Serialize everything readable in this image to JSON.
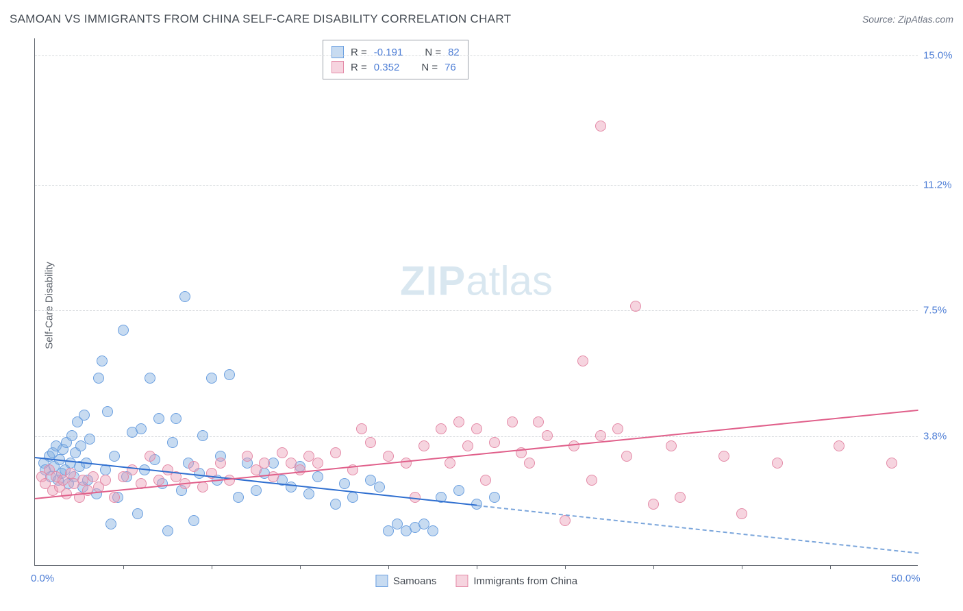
{
  "title": "SAMOAN VS IMMIGRANTS FROM CHINA SELF-CARE DISABILITY CORRELATION CHART",
  "source_label": "Source: ZipAtlas.com",
  "y_axis_label": "Self-Care Disability",
  "watermark_bold": "ZIP",
  "watermark_light": "atlas",
  "chart": {
    "type": "scatter",
    "xlim": [
      0.0,
      50.0
    ],
    "ylim": [
      0.0,
      15.5
    ],
    "y_gridlines": [
      3.8,
      7.5,
      11.2,
      15.0
    ],
    "y_tick_labels": [
      "3.8%",
      "7.5%",
      "11.2%",
      "15.0%"
    ],
    "x_tick_positions": [
      0.0,
      25.0,
      50.0
    ],
    "x_tick_labels": [
      "0.0%",
      "",
      "50.0%"
    ],
    "minor_xticks": [
      5,
      10,
      15,
      20,
      25,
      30,
      35,
      40,
      45
    ],
    "grid_color": "#d7dadd",
    "axis_color": "#60666e",
    "background_color": "#ffffff",
    "tick_label_color": "#4f7fd6",
    "tick_fontsize": 15,
    "marker_radius": 8,
    "marker_stroke_width": 1,
    "trend_line_width": 2
  },
  "series": [
    {
      "name": "Samoans",
      "fill": "rgba(130, 175, 225, 0.45)",
      "stroke": "#6a9fe0",
      "r": -0.191,
      "n": 82,
      "trend": {
        "x1": 0.0,
        "y1": 3.2,
        "x2": 25.0,
        "y2": 1.8,
        "solid_color": "#2f6fd0"
      },
      "trend_dash": {
        "x1": 25.0,
        "y1": 1.8,
        "x2": 50.0,
        "y2": 0.4,
        "dash_color": "#7aa5db"
      },
      "points": [
        [
          0.5,
          3.0
        ],
        [
          0.6,
          2.8
        ],
        [
          0.8,
          3.2
        ],
        [
          0.9,
          2.6
        ],
        [
          1.0,
          3.3
        ],
        [
          1.1,
          2.9
        ],
        [
          1.2,
          3.5
        ],
        [
          1.3,
          2.5
        ],
        [
          1.4,
          3.1
        ],
        [
          1.5,
          2.7
        ],
        [
          1.6,
          3.4
        ],
        [
          1.7,
          2.8
        ],
        [
          1.8,
          3.6
        ],
        [
          1.9,
          2.4
        ],
        [
          2.0,
          3.0
        ],
        [
          2.1,
          3.8
        ],
        [
          2.2,
          2.6
        ],
        [
          2.3,
          3.3
        ],
        [
          2.4,
          4.2
        ],
        [
          2.5,
          2.9
        ],
        [
          2.6,
          3.5
        ],
        [
          2.7,
          2.3
        ],
        [
          2.8,
          4.4
        ],
        [
          2.9,
          3.0
        ],
        [
          3.0,
          2.5
        ],
        [
          3.1,
          3.7
        ],
        [
          3.5,
          2.1
        ],
        [
          3.6,
          5.5
        ],
        [
          3.8,
          6.0
        ],
        [
          4.0,
          2.8
        ],
        [
          4.1,
          4.5
        ],
        [
          4.3,
          1.2
        ],
        [
          4.5,
          3.2
        ],
        [
          4.7,
          2.0
        ],
        [
          5.0,
          6.9
        ],
        [
          5.2,
          2.6
        ],
        [
          5.5,
          3.9
        ],
        [
          5.8,
          1.5
        ],
        [
          6.0,
          4.0
        ],
        [
          6.2,
          2.8
        ],
        [
          6.5,
          5.5
        ],
        [
          6.8,
          3.1
        ],
        [
          7.0,
          4.3
        ],
        [
          7.2,
          2.4
        ],
        [
          7.5,
          1.0
        ],
        [
          7.8,
          3.6
        ],
        [
          8.0,
          4.3
        ],
        [
          8.3,
          2.2
        ],
        [
          8.5,
          7.9
        ],
        [
          8.7,
          3.0
        ],
        [
          9.0,
          1.3
        ],
        [
          9.3,
          2.7
        ],
        [
          9.5,
          3.8
        ],
        [
          10.0,
          5.5
        ],
        [
          10.3,
          2.5
        ],
        [
          10.5,
          3.2
        ],
        [
          11.0,
          5.6
        ],
        [
          11.5,
          2.0
        ],
        [
          12.0,
          3.0
        ],
        [
          12.5,
          2.2
        ],
        [
          13.0,
          2.7
        ],
        [
          13.5,
          3.0
        ],
        [
          14.0,
          2.5
        ],
        [
          14.5,
          2.3
        ],
        [
          15.0,
          2.9
        ],
        [
          15.5,
          2.1
        ],
        [
          16.0,
          2.6
        ],
        [
          17.0,
          1.8
        ],
        [
          17.5,
          2.4
        ],
        [
          18.0,
          2.0
        ],
        [
          19.0,
          2.5
        ],
        [
          19.5,
          2.3
        ],
        [
          20.0,
          1.0
        ],
        [
          20.5,
          1.2
        ],
        [
          21.0,
          1.0
        ],
        [
          21.5,
          1.1
        ],
        [
          22.0,
          1.2
        ],
        [
          22.5,
          1.0
        ],
        [
          23.0,
          2.0
        ],
        [
          24.0,
          2.2
        ],
        [
          25.0,
          1.8
        ],
        [
          26.0,
          2.0
        ]
      ]
    },
    {
      "name": "Immigrants from China",
      "fill": "rgba(235, 160, 185, 0.45)",
      "stroke": "#e48aa7",
      "r": 0.352,
      "n": 76,
      "trend": {
        "x1": 0.0,
        "y1": 2.0,
        "x2": 50.0,
        "y2": 4.6,
        "solid_color": "#e05f8a"
      },
      "points": [
        [
          0.4,
          2.6
        ],
        [
          0.6,
          2.4
        ],
        [
          0.8,
          2.8
        ],
        [
          1.0,
          2.2
        ],
        [
          1.2,
          2.6
        ],
        [
          1.4,
          2.3
        ],
        [
          1.6,
          2.5
        ],
        [
          1.8,
          2.1
        ],
        [
          2.0,
          2.7
        ],
        [
          2.2,
          2.4
        ],
        [
          2.5,
          2.0
        ],
        [
          2.7,
          2.5
        ],
        [
          3.0,
          2.2
        ],
        [
          3.3,
          2.6
        ],
        [
          3.6,
          2.3
        ],
        [
          4.0,
          2.5
        ],
        [
          4.5,
          2.0
        ],
        [
          5.0,
          2.6
        ],
        [
          5.5,
          2.8
        ],
        [
          6.0,
          2.4
        ],
        [
          6.5,
          3.2
        ],
        [
          7.0,
          2.5
        ],
        [
          7.5,
          2.8
        ],
        [
          8.0,
          2.6
        ],
        [
          8.5,
          2.4
        ],
        [
          9.0,
          2.9
        ],
        [
          9.5,
          2.3
        ],
        [
          10.0,
          2.7
        ],
        [
          10.5,
          3.0
        ],
        [
          11.0,
          2.5
        ],
        [
          12.0,
          3.2
        ],
        [
          12.5,
          2.8
        ],
        [
          13.0,
          3.0
        ],
        [
          13.5,
          2.6
        ],
        [
          14.0,
          3.3
        ],
        [
          14.5,
          3.0
        ],
        [
          15.0,
          2.8
        ],
        [
          15.5,
          3.2
        ],
        [
          16.0,
          3.0
        ],
        [
          17.0,
          3.3
        ],
        [
          18.0,
          2.8
        ],
        [
          18.5,
          4.0
        ],
        [
          19.0,
          3.6
        ],
        [
          20.0,
          3.2
        ],
        [
          21.0,
          3.0
        ],
        [
          21.5,
          2.0
        ],
        [
          22.0,
          3.5
        ],
        [
          23.0,
          4.0
        ],
        [
          23.5,
          3.0
        ],
        [
          24.0,
          4.2
        ],
        [
          24.5,
          3.5
        ],
        [
          25.0,
          4.0
        ],
        [
          25.5,
          2.5
        ],
        [
          26.0,
          3.6
        ],
        [
          27.0,
          4.2
        ],
        [
          27.5,
          3.3
        ],
        [
          28.0,
          3.0
        ],
        [
          28.5,
          4.2
        ],
        [
          29.0,
          3.8
        ],
        [
          30.0,
          1.3
        ],
        [
          30.5,
          3.5
        ],
        [
          31.0,
          6.0
        ],
        [
          31.5,
          2.5
        ],
        [
          32.0,
          3.8
        ],
        [
          33.0,
          4.0
        ],
        [
          33.5,
          3.2
        ],
        [
          34.0,
          7.6
        ],
        [
          35.0,
          1.8
        ],
        [
          36.0,
          3.5
        ],
        [
          36.5,
          2.0
        ],
        [
          32.0,
          12.9
        ],
        [
          39.0,
          3.2
        ],
        [
          40.0,
          1.5
        ],
        [
          42.0,
          3.0
        ],
        [
          45.5,
          3.5
        ],
        [
          48.5,
          3.0
        ]
      ]
    }
  ],
  "legend_top": {
    "rows": [
      {
        "swatch_fill": "rgba(130, 175, 225, 0.45)",
        "swatch_stroke": "#6a9fe0",
        "r_label": "R =",
        "r_value": "-0.191",
        "n_label": "N =",
        "n_value": "82"
      },
      {
        "swatch_fill": "rgba(235, 160, 185, 0.45)",
        "swatch_stroke": "#e48aa7",
        "r_label": "R =",
        "r_value": "0.352",
        "n_label": "N =",
        "n_value": "76"
      }
    ]
  },
  "legend_bottom": {
    "items": [
      {
        "swatch_fill": "rgba(130, 175, 225, 0.45)",
        "swatch_stroke": "#6a9fe0",
        "label": "Samoans"
      },
      {
        "swatch_fill": "rgba(235, 160, 185, 0.45)",
        "swatch_stroke": "#e48aa7",
        "label": "Immigrants from China"
      }
    ]
  }
}
